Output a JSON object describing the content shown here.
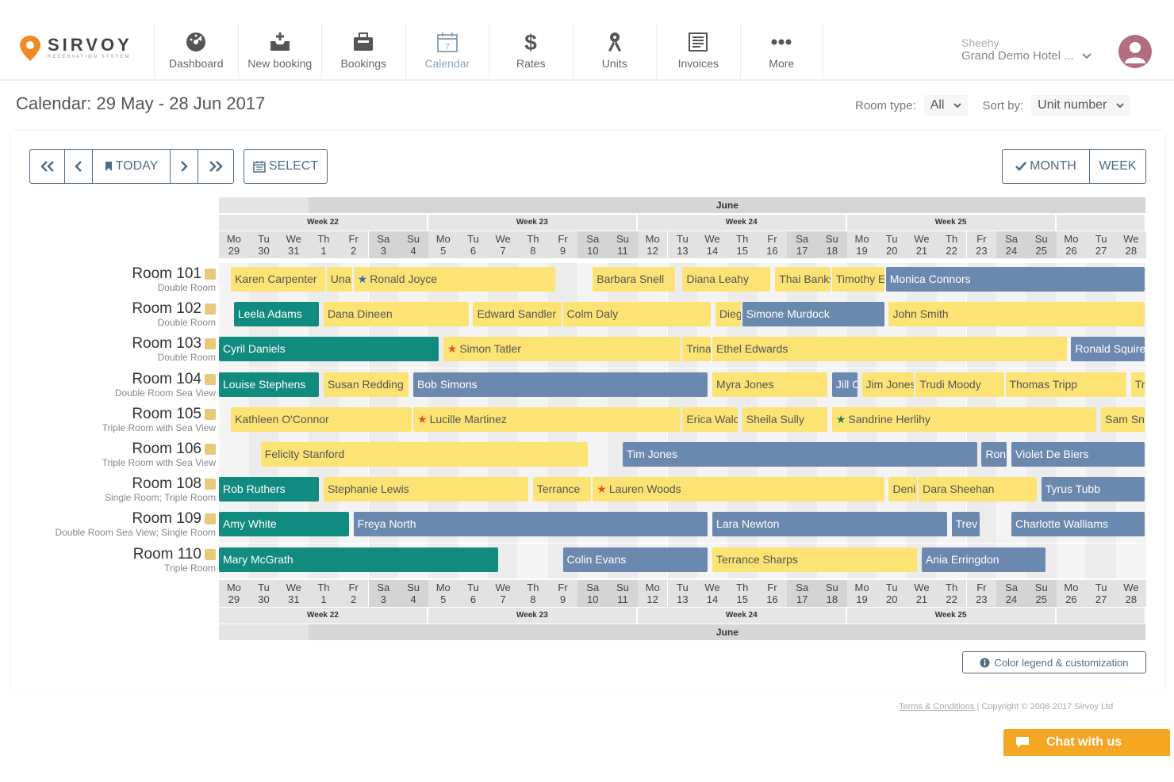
{
  "brand": {
    "name": "SIRVOY",
    "tagline": "RESERVATION SYSTEM"
  },
  "nav": [
    {
      "id": "dashboard",
      "label": "Dashboard",
      "icon": "dashboard-icon"
    },
    {
      "id": "new-booking",
      "label": "New booking",
      "icon": "inbox-plus-icon"
    },
    {
      "id": "bookings",
      "label": "Bookings",
      "icon": "briefcase-icon"
    },
    {
      "id": "calendar",
      "label": "Calendar",
      "icon": "calendar-icon",
      "active": true
    },
    {
      "id": "rates",
      "label": "Rates",
      "icon": "dollar-icon"
    },
    {
      "id": "units",
      "label": "Units",
      "icon": "key-icon"
    },
    {
      "id": "invoices",
      "label": "Invoices",
      "icon": "invoice-icon"
    },
    {
      "id": "more",
      "label": "More",
      "icon": "dots-icon"
    }
  ],
  "user": {
    "name": "Sheehy",
    "hotel": "Grand Demo Hotel ..."
  },
  "page": {
    "title": "Calendar: 29 May - 28 Jun 2017",
    "room_type_label": "Room type:",
    "room_type_value": "All",
    "sort_label": "Sort by:",
    "sort_value": "Unit number"
  },
  "toolbar": {
    "today": "TODAY",
    "select": "SELECT",
    "month": "MONTH",
    "week": "WEEK"
  },
  "calendar": {
    "month": "June",
    "weeks": [
      {
        "label": "Week 22",
        "start": 0,
        "span": 7
      },
      {
        "label": "Week 23",
        "start": 7,
        "span": 7
      },
      {
        "label": "Week 24",
        "start": 14,
        "span": 7
      },
      {
        "label": "Week 25",
        "start": 21,
        "span": 7
      },
      {
        "label": "",
        "start": 28,
        "span": 3
      }
    ],
    "days": [
      {
        "d": "Mo",
        "n": "29"
      },
      {
        "d": "Tu",
        "n": "30"
      },
      {
        "d": "We",
        "n": "31"
      },
      {
        "d": "Th",
        "n": "1"
      },
      {
        "d": "Fr",
        "n": "2"
      },
      {
        "d": "Sa",
        "n": "3"
      },
      {
        "d": "Su",
        "n": "4"
      },
      {
        "d": "Mo",
        "n": "5"
      },
      {
        "d": "Tu",
        "n": "6"
      },
      {
        "d": "We",
        "n": "7"
      },
      {
        "d": "Th",
        "n": "8"
      },
      {
        "d": "Fr",
        "n": "9"
      },
      {
        "d": "Sa",
        "n": "10"
      },
      {
        "d": "Su",
        "n": "11"
      },
      {
        "d": "Mo",
        "n": "12"
      },
      {
        "d": "Tu",
        "n": "13"
      },
      {
        "d": "We",
        "n": "14"
      },
      {
        "d": "Th",
        "n": "15"
      },
      {
        "d": "Fr",
        "n": "16"
      },
      {
        "d": "Sa",
        "n": "17"
      },
      {
        "d": "Su",
        "n": "18"
      },
      {
        "d": "Mo",
        "n": "19"
      },
      {
        "d": "Tu",
        "n": "20"
      },
      {
        "d": "We",
        "n": "21"
      },
      {
        "d": "Th",
        "n": "22"
      },
      {
        "d": "Fr",
        "n": "23"
      },
      {
        "d": "Sa",
        "n": "24"
      },
      {
        "d": "Su",
        "n": "25"
      },
      {
        "d": "Mo",
        "n": "26"
      },
      {
        "d": "Tu",
        "n": "27"
      },
      {
        "d": "We",
        "n": "28"
      }
    ],
    "rooms": [
      {
        "name": "Room 101",
        "type": "Double Room",
        "bookings": [
          {
            "g": "Karen Carpenter",
            "s": 0.4,
            "e": 3.6,
            "c": "y"
          },
          {
            "g": "Una",
            "s": 3.6,
            "e": 4.5,
            "c": "y"
          },
          {
            "g": "Ronald Joyce",
            "s": 4.5,
            "e": 11.3,
            "c": "y",
            "star": "blue"
          },
          {
            "g": "Barbara Snell",
            "s": 12.5,
            "e": 15.3,
            "c": "y"
          },
          {
            "g": "Diana Leahy",
            "s": 15.5,
            "e": 18.5,
            "c": "y"
          },
          {
            "g": "Thai Banks",
            "s": 18.6,
            "e": 20.5,
            "c": "y"
          },
          {
            "g": "Timothy E",
            "s": 20.5,
            "e": 22.3,
            "c": "y"
          },
          {
            "g": "Monica Connors",
            "s": 22.3,
            "e": 31,
            "c": "b"
          }
        ]
      },
      {
        "name": "Room 102",
        "type": "Double Room",
        "bookings": [
          {
            "g": "Leela Adams",
            "s": 0.5,
            "e": 3.4,
            "c": "t"
          },
          {
            "g": "Dana Dineen",
            "s": 3.5,
            "e": 8.4,
            "c": "y"
          },
          {
            "g": "Edward Sandler",
            "s": 8.5,
            "e": 11.5,
            "c": "y"
          },
          {
            "g": "Colm Daly",
            "s": 11.5,
            "e": 16.5,
            "c": "y"
          },
          {
            "g": "Diego",
            "s": 16.6,
            "e": 17.5,
            "c": "y"
          },
          {
            "g": "Simone Murdock",
            "s": 17.5,
            "e": 22.3,
            "c": "b"
          },
          {
            "g": "John Smith",
            "s": 22.4,
            "e": 31,
            "c": "y"
          }
        ]
      },
      {
        "name": "Room 103",
        "type": "Double Room",
        "bookings": [
          {
            "g": "Cyril Daniels",
            "s": 0,
            "e": 7.4,
            "c": "t"
          },
          {
            "g": "Simon Tatler",
            "s": 7.5,
            "e": 15.5,
            "c": "y",
            "star": "red"
          },
          {
            "g": "Trina",
            "s": 15.5,
            "e": 16.5,
            "c": "y"
          },
          {
            "g": "Ethel Edwards",
            "s": 16.5,
            "e": 28.4,
            "c": "y"
          },
          {
            "g": "Ronald Squire",
            "s": 28.5,
            "e": 31,
            "c": "b"
          }
        ]
      },
      {
        "name": "Room 104",
        "type": "Double Room Sea View",
        "bookings": [
          {
            "g": "Louise Stephens",
            "s": 0,
            "e": 3.4,
            "c": "t"
          },
          {
            "g": "Susan Redding",
            "s": 3.5,
            "e": 6.4,
            "c": "y"
          },
          {
            "g": "Bob Simons",
            "s": 6.5,
            "e": 16.4,
            "c": "b"
          },
          {
            "g": "Myra Jones",
            "s": 16.5,
            "e": 20.4,
            "c": "y"
          },
          {
            "g": "Jill C",
            "s": 20.5,
            "e": 21.4,
            "c": "b"
          },
          {
            "g": "Jim Jones",
            "s": 21.5,
            "e": 23.3,
            "c": "y"
          },
          {
            "g": "Trudi Moody",
            "s": 23.3,
            "e": 26.3,
            "c": "y"
          },
          {
            "g": "Thomas Tripp",
            "s": 26.3,
            "e": 30.4,
            "c": "y"
          },
          {
            "g": "Tr",
            "s": 30.5,
            "e": 31,
            "c": "y"
          }
        ]
      },
      {
        "name": "Room 105",
        "type": "Triple Room with Sea View",
        "bookings": [
          {
            "g": "Kathleen O'Connor",
            "s": 0.4,
            "e": 6.5,
            "c": "y"
          },
          {
            "g": "Lucille Martinez",
            "s": 6.5,
            "e": 15.5,
            "c": "y",
            "star": "red"
          },
          {
            "g": "Erica Walc",
            "s": 15.5,
            "e": 17.4,
            "c": "y"
          },
          {
            "g": "Sheila Sully",
            "s": 17.5,
            "e": 20.4,
            "c": "y"
          },
          {
            "g": "Sandrine Herlihy",
            "s": 20.5,
            "e": 29.4,
            "c": "y",
            "star": "green"
          },
          {
            "g": "Sam Sn",
            "s": 29.5,
            "e": 31,
            "c": "y"
          }
        ]
      },
      {
        "name": "Room 106",
        "type": "Triple Room with Sea View",
        "bookings": [
          {
            "g": "Felicity Stanford",
            "s": 1.4,
            "e": 12.4,
            "c": "y"
          },
          {
            "g": "Tim Jones",
            "s": 13.5,
            "e": 25.4,
            "c": "b"
          },
          {
            "g": "Ron",
            "s": 25.5,
            "e": 26.4,
            "c": "b"
          },
          {
            "g": "Violet De Biers",
            "s": 26.5,
            "e": 31,
            "c": "b"
          }
        ]
      },
      {
        "name": "Room 108",
        "type": "Single Room; Triple Room",
        "bookings": [
          {
            "g": "Rob Ruthers",
            "s": 0,
            "e": 3.4,
            "c": "t"
          },
          {
            "g": "Stephanie Lewis",
            "s": 3.5,
            "e": 10.4,
            "c": "y"
          },
          {
            "g": "Terrance",
            "s": 10.5,
            "e": 12.5,
            "c": "y"
          },
          {
            "g": "Lauren Woods",
            "s": 12.5,
            "e": 22.3,
            "c": "y",
            "star": "red"
          },
          {
            "g": "Deni",
            "s": 22.4,
            "e": 23.4,
            "c": "y"
          },
          {
            "g": "Dara Sheehan",
            "s": 23.4,
            "e": 27.4,
            "c": "y"
          },
          {
            "g": "Tyrus Tubb",
            "s": 27.5,
            "e": 31,
            "c": "b"
          }
        ]
      },
      {
        "name": "Room 109",
        "type": "Double Room Sea View; Single Room",
        "bookings": [
          {
            "g": "Amy White",
            "s": 0,
            "e": 4.4,
            "c": "t"
          },
          {
            "g": "Freya North",
            "s": 4.5,
            "e": 16.4,
            "c": "b"
          },
          {
            "g": "Lara Newton",
            "s": 16.5,
            "e": 24.4,
            "c": "b"
          },
          {
            "g": "Trev",
            "s": 24.5,
            "e": 25.5,
            "c": "b"
          },
          {
            "g": "Charlotte Walliams",
            "s": 26.5,
            "e": 31,
            "c": "b"
          }
        ]
      },
      {
        "name": "Room 110",
        "type": "Triple Room",
        "bookings": [
          {
            "g": "Mary McGrath",
            "s": 0,
            "e": 9.4,
            "c": "t"
          },
          {
            "g": "Colin Evans",
            "s": 11.5,
            "e": 16.4,
            "c": "b"
          },
          {
            "g": "Terrance Sharps",
            "s": 16.5,
            "e": 23.4,
            "c": "y"
          },
          {
            "g": "Ania Erringdon",
            "s": 23.5,
            "e": 27.7,
            "c": "b"
          }
        ]
      }
    ]
  },
  "legend_button": "Color legend & customization",
  "footer": {
    "terms": "Terms & Conditions",
    "copyright": "| Copyright © 2008-2017 Sirvoy Ltd"
  },
  "chat": "Chat with us"
}
